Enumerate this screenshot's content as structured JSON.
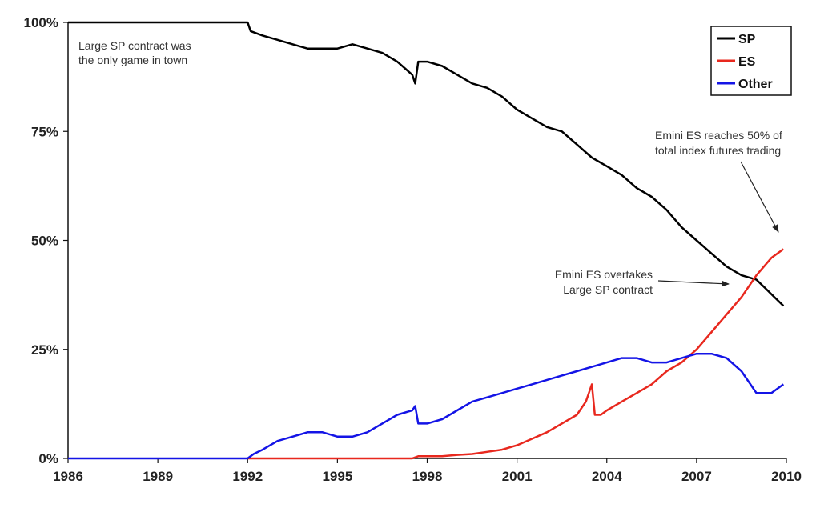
{
  "chart_data": {
    "type": "line",
    "title": "",
    "xlabel": "",
    "ylabel": "",
    "xlim": [
      1986,
      2010
    ],
    "ylim": [
      0,
      100
    ],
    "x_ticks": [
      1986,
      1989,
      1992,
      1995,
      1998,
      2001,
      2004,
      2007,
      2010
    ],
    "x_tick_labels": [
      "1986",
      "1989",
      "1992",
      "1995",
      "1998",
      "2001",
      "2004",
      "2007",
      "2010"
    ],
    "y_ticks": [
      0,
      25,
      50,
      75,
      100
    ],
    "y_tick_labels": [
      "0%",
      "25%",
      "50%",
      "75%",
      "100%"
    ],
    "grid": false,
    "legend_position": "top-right",
    "series": [
      {
        "name": "SP",
        "color": "#000000",
        "x": [
          1986,
          1992,
          1992.1,
          1992.5,
          1993,
          1993.5,
          1994,
          1994.5,
          1995,
          1995.5,
          1996,
          1996.5,
          1997,
          1997.5,
          1997.6,
          1997.7,
          1998,
          1998.5,
          1999,
          1999.5,
          2000,
          2000.5,
          2001,
          2001.5,
          2002,
          2002.5,
          2003,
          2003.5,
          2004,
          2004.5,
          2005,
          2005.5,
          2006,
          2006.5,
          2007,
          2007.5,
          2008,
          2008.5,
          2009,
          2009.3,
          2009.6,
          2009.9
        ],
        "y": [
          100,
          100,
          98,
          97,
          96,
          95,
          94,
          94,
          94,
          95,
          94,
          93,
          91,
          88,
          86,
          91,
          91,
          90,
          88,
          86,
          85,
          83,
          80,
          78,
          76,
          75,
          72,
          69,
          67,
          65,
          62,
          60,
          57,
          53,
          50,
          47,
          44,
          42,
          41,
          39,
          37,
          35
        ]
      },
      {
        "name": "ES",
        "color": "#e8281e",
        "x": [
          1992,
          1997.5,
          1997.7,
          1998,
          1998.5,
          1999,
          1999.5,
          2000,
          2000.5,
          2001,
          2001.5,
          2002,
          2002.5,
          2003,
          2003.3,
          2003.5,
          2003.6,
          2003.8,
          2004,
          2004.5,
          2005,
          2005.5,
          2006,
          2006.5,
          2007,
          2007.5,
          2008,
          2008.5,
          2009,
          2009.5,
          2009.9
        ],
        "y": [
          0,
          0,
          0.5,
          0.5,
          0.5,
          0.8,
          1,
          1.5,
          2,
          3,
          4.5,
          6,
          8,
          10,
          13,
          17,
          10,
          10,
          11,
          13,
          15,
          17,
          20,
          22,
          25,
          29,
          33,
          37,
          42,
          46,
          48
        ]
      },
      {
        "name": "Other",
        "color": "#1414e6",
        "x": [
          1986,
          1992,
          1992.2,
          1992.5,
          1993,
          1993.5,
          1994,
          1994.5,
          1995,
          1995.5,
          1996,
          1996.5,
          1997,
          1997.5,
          1997.6,
          1997.7,
          1998,
          1998.5,
          1999,
          1999.5,
          2000,
          2000.5,
          2001,
          2001.5,
          2002,
          2002.5,
          2003,
          2003.5,
          2004,
          2004.5,
          2005,
          2005.5,
          2006,
          2006.5,
          2007,
          2007.5,
          2008,
          2008.5,
          2009,
          2009.5,
          2009.9
        ],
        "y": [
          0,
          0,
          1,
          2,
          4,
          5,
          6,
          6,
          5,
          5,
          6,
          8,
          10,
          11,
          12,
          8,
          8,
          9,
          11,
          13,
          14,
          15,
          16,
          17,
          18,
          19,
          20,
          21,
          22,
          23,
          23,
          22,
          22,
          23,
          24,
          24,
          23,
          20,
          15,
          15,
          17
        ]
      }
    ],
    "annotations": [
      {
        "lines": [
          "Large SP contract was",
          "the only game in town"
        ]
      },
      {
        "lines": [
          "Emini ES reaches 50% of",
          "total index futures trading"
        ]
      },
      {
        "lines": [
          "Emini ES overtakes",
          "Large SP contract"
        ]
      }
    ]
  }
}
